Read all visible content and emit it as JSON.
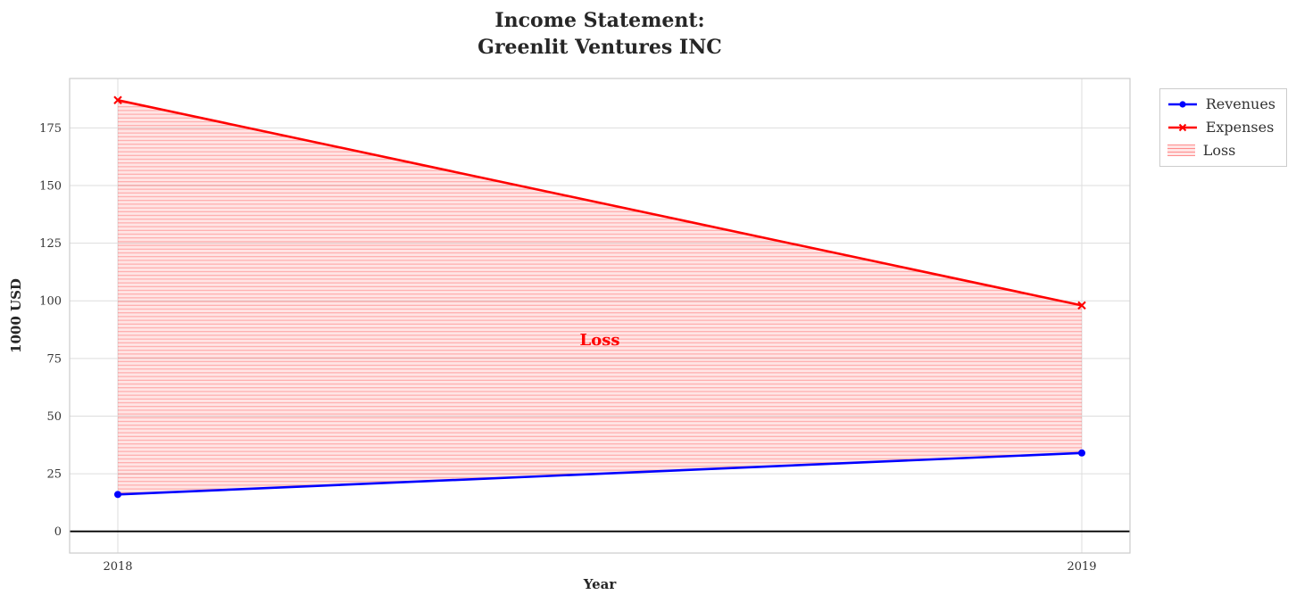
{
  "chart_data": {
    "type": "line",
    "title_lines": [
      "Income Statement:",
      "Greenlit Ventures INC"
    ],
    "xlabel": "Year",
    "ylabel": "1000 USD",
    "x": [
      2018,
      2019
    ],
    "x_tick_labels": [
      "2018",
      "2019"
    ],
    "yticks": [
      0,
      25,
      50,
      75,
      100,
      125,
      150,
      175
    ],
    "xlim": [
      2017.95,
      2019.05
    ],
    "ylim": [
      -9.4,
      196.4
    ],
    "grid": true,
    "grid_color": "#dddddd",
    "spine_color": "#cccccc",
    "zero_line": {
      "y": 0,
      "color": "#000000"
    },
    "series": [
      {
        "name": "Revenues",
        "color": "#0000ff",
        "marker": "circle",
        "values": [
          16,
          34
        ]
      },
      {
        "name": "Expenses",
        "color": "#ff0000",
        "marker": "x",
        "values": [
          187,
          98
        ]
      }
    ],
    "loss_fill": {
      "label": "Loss",
      "color": "#ff0000",
      "between": [
        "Expenses",
        "Revenues"
      ]
    },
    "annotation": {
      "text": "Loss",
      "x": 2018.5,
      "y": 83,
      "color": "#ff0000"
    },
    "legend": {
      "entries": [
        "Revenues",
        "Expenses",
        "Loss"
      ],
      "position": "upper-right-outside"
    }
  }
}
